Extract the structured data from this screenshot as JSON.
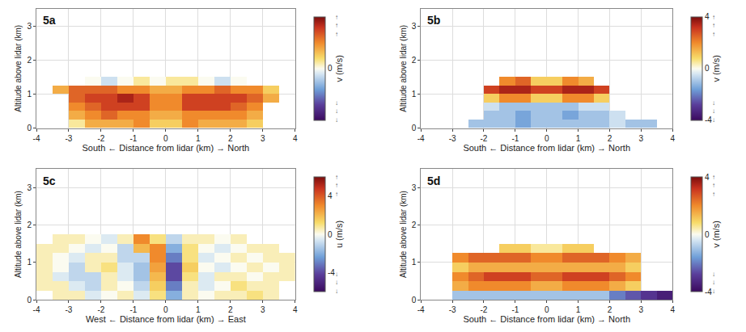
{
  "chart_data": [
    {
      "type": "heatmap",
      "title": "5a",
      "x_label": "South ← Distance from lidar (km) → North",
      "y_label": "Altitude above lidar (km)",
      "xlim": [
        -4,
        4
      ],
      "xticks": [
        -4,
        -3,
        -2,
        -1,
        0,
        1,
        2,
        3,
        4
      ],
      "ylim": [
        0,
        3.5
      ],
      "yticks": [
        0,
        1,
        2,
        3
      ],
      "grid": true,
      "x": [
        -3.75,
        -3.25,
        -2.75,
        -2.25,
        -1.75,
        -1.25,
        -0.75,
        -0.25,
        0.25,
        0.75,
        1.25,
        1.75,
        2.25,
        2.75,
        3.25,
        3.75
      ],
      "y": [
        0.125,
        0.375,
        0.625,
        0.875,
        1.125,
        1.375,
        1.625,
        1.875
      ],
      "z": [
        [
          null,
          null,
          0.5,
          1.5,
          1.5,
          1.5,
          2,
          1,
          1,
          2,
          1.5,
          1.5,
          1.5,
          1,
          null,
          null
        ],
        [
          null,
          null,
          1.5,
          2,
          2.5,
          2,
          2,
          1.5,
          1.5,
          2,
          2,
          2,
          2,
          1.5,
          null,
          null
        ],
        [
          null,
          null,
          2,
          2.5,
          3,
          3,
          3,
          2,
          2,
          3,
          3,
          3,
          2.5,
          2,
          null,
          null
        ],
        [
          null,
          null,
          2.5,
          3,
          3,
          3.5,
          3,
          2,
          2,
          3,
          3,
          3,
          3,
          2.5,
          1.5,
          null
        ],
        [
          null,
          1.5,
          2.5,
          2.5,
          2.5,
          2,
          2,
          1.5,
          1.5,
          2,
          2,
          2.5,
          2,
          2,
          1,
          null
        ],
        [
          null,
          null,
          null,
          0,
          -0.5,
          0,
          0.5,
          0,
          0.5,
          0.5,
          0,
          -0.5,
          0,
          null,
          null,
          null
        ],
        [
          null,
          null,
          null,
          null,
          null,
          null,
          null,
          null,
          null,
          null,
          null,
          null,
          null,
          null,
          null,
          null
        ],
        [
          null,
          null,
          null,
          null,
          null,
          null,
          null,
          null,
          null,
          null,
          null,
          null,
          null,
          null,
          null,
          null
        ]
      ],
      "colorbar": {
        "title": "v (m/s)",
        "range": [
          -4,
          4
        ],
        "ticks": [
          0
        ],
        "arrow_high": "↑↑↑",
        "arrow_low": "↓↓↓"
      }
    },
    {
      "type": "heatmap",
      "title": "5b",
      "x_label": "South ← Distance from lidar (km) → North",
      "y_label": "Altitude above lidar (km)",
      "xlim": [
        -4,
        4
      ],
      "xticks": [
        -4,
        -3,
        -2,
        -1,
        0,
        1,
        2,
        3,
        4
      ],
      "ylim": [
        0,
        3.5
      ],
      "yticks": [
        0,
        1,
        2,
        3
      ],
      "grid": true,
      "x": [
        -3.75,
        -3.25,
        -2.75,
        -2.25,
        -1.75,
        -1.25,
        -0.75,
        -0.25,
        0.25,
        0.75,
        1.25,
        1.75,
        2.25,
        2.75,
        3.25,
        3.75
      ],
      "y": [
        0.125,
        0.375,
        0.625,
        0.875,
        1.125,
        1.375,
        1.625,
        1.875
      ],
      "z": [
        [
          null,
          null,
          null,
          -1,
          -1,
          -1,
          -1.5,
          -1,
          -1,
          -1,
          -1,
          -1,
          -0.5,
          -1,
          -1,
          null
        ],
        [
          null,
          null,
          null,
          null,
          -1,
          -1,
          -1.5,
          -1,
          -1,
          -1.5,
          -1,
          -1,
          -0.5,
          null,
          null,
          null
        ],
        [
          null,
          null,
          null,
          null,
          -0.5,
          -1,
          -1,
          -1,
          -1,
          -1,
          -0.5,
          -0.5,
          null,
          null,
          null,
          null
        ],
        [
          null,
          null,
          null,
          null,
          1,
          2,
          2,
          1,
          1,
          2,
          2,
          1,
          null,
          null,
          null,
          null
        ],
        [
          null,
          null,
          null,
          null,
          3,
          3.5,
          3.5,
          3,
          3,
          3.5,
          3.5,
          3,
          null,
          null,
          null,
          null
        ],
        [
          null,
          null,
          null,
          null,
          null,
          2,
          2.5,
          1,
          1,
          2,
          1.5,
          null,
          null,
          null,
          null,
          null
        ],
        [
          null,
          null,
          null,
          null,
          null,
          null,
          null,
          null,
          null,
          null,
          null,
          null,
          null,
          null,
          null,
          null
        ],
        [
          null,
          null,
          null,
          null,
          null,
          null,
          null,
          null,
          null,
          null,
          null,
          null,
          null,
          null,
          null,
          null
        ]
      ],
      "colorbar": {
        "title": "v (m/s)",
        "range": [
          -4,
          4
        ],
        "ticks": [
          -4,
          0,
          4
        ],
        "arrow_high": "↑↑↑",
        "arrow_low": "↓↓↓"
      }
    },
    {
      "type": "heatmap",
      "title": "5c",
      "x_label": "West ← Distance from lidar (km) → East",
      "y_label": "Altitude above lidar (km)",
      "xlim": [
        -4,
        4
      ],
      "xticks": [
        -4,
        -3,
        -2,
        -1,
        0,
        1,
        2,
        3,
        4
      ],
      "ylim": [
        0,
        3.5
      ],
      "yticks": [
        0,
        1,
        2,
        3
      ],
      "grid": true,
      "x": [
        -3.75,
        -3.25,
        -2.75,
        -2.25,
        -1.75,
        -1.25,
        -0.75,
        -0.25,
        0.25,
        0.75,
        1.25,
        1.75,
        2.25,
        2.75,
        3.25,
        3.75
      ],
      "y": [
        0.125,
        0.375,
        0.625,
        0.875,
        1.125,
        1.375,
        1.625,
        1.875
      ],
      "z": [
        [
          null,
          0.5,
          0.5,
          -0.5,
          0,
          0.5,
          -0.5,
          1,
          -2,
          0.5,
          0,
          0.5,
          0.5,
          1,
          0.5,
          null
        ],
        [
          0.5,
          0.5,
          -0.5,
          -1,
          0.5,
          0,
          -1,
          1.5,
          -3,
          0.5,
          -0.5,
          0,
          1,
          0.5,
          0.5,
          null
        ],
        [
          0.5,
          -0.5,
          -1,
          -1,
          0.5,
          -0.5,
          -1.5,
          2,
          -4,
          1,
          -0.5,
          0.5,
          0.5,
          0,
          0.5,
          0.5
        ],
        [
          0.5,
          0,
          -1,
          0.5,
          1,
          -0.5,
          -1.5,
          2.5,
          -4,
          1.5,
          0,
          -0.5,
          0,
          0.5,
          0,
          0.5
        ],
        [
          0.5,
          0,
          -0.5,
          0.5,
          0.5,
          -1,
          -1,
          3,
          -3,
          1,
          -0.5,
          0,
          0.5,
          0,
          0.5,
          0.5
        ],
        [
          0.5,
          0.5,
          0,
          -0.5,
          0,
          -1,
          2,
          3,
          -2,
          1,
          0,
          -0.5,
          0,
          0.5,
          0.5,
          null
        ],
        [
          null,
          0.5,
          0.5,
          0,
          -0.5,
          0.5,
          3,
          1,
          -1,
          0.5,
          0.5,
          0,
          0.5,
          null,
          null,
          null
        ],
        [
          null,
          null,
          null,
          null,
          null,
          null,
          null,
          null,
          null,
          null,
          null,
          null,
          null,
          null,
          null,
          null
        ]
      ],
      "colorbar": {
        "title": "u (m/s)",
        "range": [
          -6,
          6
        ],
        "ticks": [
          -4,
          0,
          4
        ],
        "arrow_high": "↑↑↑",
        "arrow_low": "↓↓↓"
      }
    },
    {
      "type": "heatmap",
      "title": "5d",
      "x_label": "South ← Distance from lidar (km) → North",
      "y_label": "Altitude above lidar (km)",
      "xlim": [
        -4,
        4
      ],
      "xticks": [
        -4,
        -3,
        -2,
        -1,
        0,
        1,
        2,
        3,
        4
      ],
      "ylim": [
        0,
        3.5
      ],
      "yticks": [
        0,
        1,
        2,
        3
      ],
      "grid": true,
      "x": [
        -3.75,
        -3.25,
        -2.75,
        -2.25,
        -1.75,
        -1.25,
        -0.75,
        -0.25,
        0.25,
        0.75,
        1.25,
        1.75,
        2.25,
        2.75,
        3.25,
        3.75
      ],
      "y": [
        0.125,
        0.375,
        0.625,
        0.875,
        1.125,
        1.375,
        1.625,
        1.875
      ],
      "z": [
        [
          null,
          null,
          -1,
          -1,
          -1,
          -1,
          -1,
          -1,
          -1,
          -1,
          -1,
          -1,
          -2,
          -2.5,
          -3,
          -3.5
        ],
        [
          null,
          null,
          1.5,
          2,
          2,
          2,
          2,
          1.5,
          1.5,
          2,
          2,
          2,
          1.5,
          1,
          null,
          null
        ],
        [
          null,
          null,
          2,
          2.5,
          3,
          3,
          3,
          2.5,
          2.5,
          3,
          3,
          3,
          2.5,
          2,
          null,
          null
        ],
        [
          null,
          null,
          1,
          1.5,
          1.5,
          1.5,
          1.5,
          1.5,
          1.5,
          1.5,
          1.5,
          1.5,
          1.5,
          1,
          null,
          null
        ],
        [
          null,
          null,
          2,
          2.5,
          2.5,
          2.5,
          2.5,
          2,
          2,
          2.5,
          2.5,
          2.5,
          2,
          1.5,
          null,
          null
        ],
        [
          null,
          null,
          null,
          null,
          null,
          1,
          1,
          0.5,
          0.5,
          1,
          1,
          null,
          null,
          null,
          null,
          null
        ],
        [
          null,
          null,
          null,
          null,
          null,
          null,
          null,
          null,
          null,
          null,
          null,
          null,
          null,
          null,
          null,
          null
        ],
        [
          null,
          null,
          null,
          null,
          null,
          null,
          null,
          null,
          null,
          null,
          null,
          null,
          null,
          null,
          null,
          null
        ]
      ],
      "colorbar": {
        "title": "v (m/s)",
        "range": [
          -4,
          4
        ],
        "ticks": [
          -4,
          0,
          4
        ],
        "arrow_high": "↑↑↑",
        "arrow_low": "↓↓↓"
      }
    }
  ]
}
